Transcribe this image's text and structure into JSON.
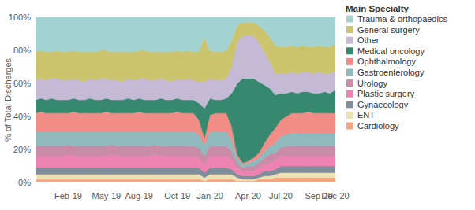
{
  "chart_data": {
    "type": "area",
    "stacked": true,
    "grid": false,
    "legend": "top-right",
    "legend_title": "Main Specialty",
    "y_label": "% of Total Discharges",
    "ylim": [
      0,
      100
    ],
    "yticks": [
      {
        "value": 0,
        "label": "0%"
      },
      {
        "value": 20,
        "label": "20%"
      },
      {
        "value": 40,
        "label": "40%"
      },
      {
        "value": 60,
        "label": "60%"
      },
      {
        "value": 80,
        "label": "80%"
      },
      {
        "value": 100,
        "label": "100%"
      }
    ],
    "categories": [
      null,
      null,
      null,
      null,
      null,
      null,
      "Feb-19",
      null,
      null,
      null,
      null,
      null,
      null,
      "May-19",
      null,
      null,
      null,
      null,
      null,
      "Aug-19",
      null,
      null,
      null,
      null,
      null,
      null,
      "Oct-19",
      null,
      null,
      null,
      null,
      null,
      "Jan-20",
      null,
      null,
      null,
      null,
      null,
      null,
      "Apr-20",
      null,
      null,
      null,
      null,
      null,
      "Jul-20",
      null,
      null,
      null,
      null,
      null,
      null,
      "Sep-20",
      null,
      null,
      "Dec-20"
    ],
    "series": [
      {
        "name": "Trauma & orthopaedics",
        "color": "#a3d3d1",
        "values": [
          21,
          20,
          21,
          21,
          20,
          21,
          21,
          20,
          21,
          21,
          21,
          21,
          20,
          20,
          21,
          21,
          21,
          21,
          21,
          20,
          20,
          21,
          21,
          21,
          21,
          21,
          20,
          21,
          20,
          21,
          21,
          12,
          20,
          21,
          21,
          20,
          14,
          5,
          3,
          3,
          3,
          5,
          8,
          12,
          17,
          18,
          18,
          17,
          18,
          17,
          18,
          18,
          17,
          18,
          18,
          16
        ]
      },
      {
        "name": "General surgery",
        "color": "#cbc46c",
        "values": [
          17,
          17,
          17,
          16,
          17,
          17,
          17,
          17,
          17,
          18,
          16,
          17,
          17,
          17,
          17,
          17,
          18,
          16,
          17,
          17,
          17,
          17,
          17,
          16,
          17,
          18,
          17,
          17,
          17,
          17,
          18,
          27,
          17,
          17,
          17,
          17,
          16,
          10,
          8,
          8,
          8,
          10,
          13,
          15,
          17,
          16,
          16,
          16,
          16,
          16,
          15,
          16,
          16,
          16,
          16,
          16
        ]
      },
      {
        "name": "Other",
        "color": "#c4bad6",
        "values": [
          12,
          12,
          12,
          12,
          13,
          12,
          12,
          12,
          12,
          11,
          12,
          12,
          13,
          12,
          12,
          12,
          11,
          12,
          12,
          12,
          13,
          12,
          12,
          12,
          12,
          11,
          12,
          12,
          13,
          12,
          13,
          16,
          12,
          12,
          12,
          12,
          16,
          25,
          26,
          26,
          26,
          24,
          20,
          16,
          13,
          12,
          12,
          12,
          12,
          12,
          12,
          12,
          13,
          11,
          12,
          12
        ]
      },
      {
        "name": "Medical oncology",
        "color": "#36896f",
        "values": [
          8,
          8,
          8,
          9,
          8,
          8,
          8,
          8,
          8,
          8,
          9,
          8,
          8,
          8,
          8,
          8,
          8,
          9,
          8,
          8,
          8,
          8,
          8,
          9,
          8,
          8,
          8,
          8,
          8,
          8,
          10,
          18,
          10,
          8,
          8,
          9,
          20,
          43,
          51,
          50,
          48,
          43,
          35,
          28,
          20,
          16,
          14,
          13,
          12,
          13,
          12,
          12,
          12,
          13,
          12,
          14
        ]
      },
      {
        "name": "Ophthalmology",
        "color": "#f18d86",
        "values": [
          11,
          12,
          11,
          11,
          11,
          11,
          11,
          12,
          11,
          11,
          11,
          11,
          11,
          12,
          11,
          11,
          11,
          11,
          11,
          12,
          11,
          11,
          11,
          11,
          11,
          11,
          12,
          11,
          11,
          11,
          9,
          4,
          10,
          11,
          11,
          11,
          8,
          2,
          1,
          1,
          2,
          3,
          5,
          7,
          9,
          10,
          11,
          12,
          12,
          12,
          13,
          12,
          12,
          12,
          12,
          12
        ]
      },
      {
        "name": "Gastroenterology",
        "color": "#8fb9bd",
        "values": [
          9,
          9,
          9,
          9,
          9,
          9,
          8,
          9,
          9,
          9,
          9,
          9,
          9,
          9,
          8,
          9,
          9,
          9,
          9,
          9,
          9,
          9,
          8,
          9,
          9,
          9,
          9,
          9,
          9,
          9,
          8,
          7,
          9,
          9,
          9,
          9,
          7,
          3,
          2,
          2,
          3,
          3,
          4,
          5,
          6,
          7,
          7,
          8,
          8,
          8,
          8,
          8,
          8,
          8,
          8,
          8
        ]
      },
      {
        "name": "Urology",
        "color": "#c98ba5",
        "values": [
          6,
          6,
          6,
          6,
          6,
          6,
          6,
          6,
          6,
          6,
          6,
          6,
          6,
          6,
          6,
          6,
          6,
          6,
          6,
          6,
          6,
          6,
          6,
          6,
          6,
          6,
          6,
          6,
          6,
          6,
          6,
          5,
          6,
          6,
          6,
          6,
          5,
          3,
          2,
          3,
          3,
          3,
          4,
          5,
          5,
          5,
          6,
          6,
          6,
          6,
          6,
          6,
          6,
          6,
          6,
          6
        ]
      },
      {
        "name": "Plastic surgery",
        "color": "#ee82b1",
        "values": [
          7,
          7,
          7,
          7,
          7,
          7,
          8,
          7,
          7,
          7,
          7,
          7,
          7,
          7,
          8,
          7,
          7,
          7,
          7,
          7,
          7,
          7,
          8,
          7,
          7,
          7,
          7,
          7,
          7,
          7,
          6,
          5,
          7,
          7,
          7,
          7,
          6,
          4,
          3,
          3,
          3,
          4,
          4,
          5,
          5,
          6,
          6,
          6,
          6,
          6,
          6,
          6,
          6,
          6,
          6,
          6
        ]
      },
      {
        "name": "Gynaecology",
        "color": "#808d9a",
        "values": [
          4,
          4,
          4,
          4,
          4,
          4,
          4,
          4,
          4,
          4,
          4,
          4,
          4,
          4,
          4,
          4,
          4,
          4,
          4,
          4,
          4,
          4,
          4,
          4,
          4,
          4,
          4,
          4,
          4,
          4,
          4,
          3,
          4,
          4,
          4,
          4,
          3,
          2,
          2,
          2,
          2,
          2,
          3,
          3,
          3,
          4,
          4,
          4,
          4,
          4,
          4,
          4,
          4,
          4,
          4,
          4
        ]
      },
      {
        "name": "ENT",
        "color": "#ebe1b5",
        "values": [
          3,
          3,
          3,
          3,
          3,
          3,
          3,
          3,
          3,
          3,
          3,
          3,
          3,
          3,
          3,
          3,
          3,
          3,
          3,
          3,
          3,
          3,
          3,
          3,
          3,
          3,
          3,
          3,
          3,
          3,
          3,
          2,
          3,
          3,
          3,
          3,
          3,
          2,
          1,
          1,
          1,
          1,
          2,
          2,
          2,
          3,
          3,
          3,
          3,
          3,
          3,
          3,
          3,
          3,
          3,
          3
        ]
      },
      {
        "name": "Cardiology",
        "color": "#f4a67e",
        "values": [
          2,
          2,
          2,
          2,
          2,
          2,
          2,
          2,
          2,
          2,
          2,
          2,
          2,
          2,
          2,
          2,
          2,
          2,
          2,
          2,
          2,
          2,
          2,
          2,
          2,
          2,
          2,
          2,
          2,
          2,
          2,
          1,
          2,
          2,
          2,
          2,
          2,
          1,
          1,
          1,
          1,
          2,
          2,
          2,
          3,
          3,
          3,
          3,
          3,
          3,
          3,
          3,
          3,
          3,
          3,
          3
        ]
      }
    ]
  }
}
